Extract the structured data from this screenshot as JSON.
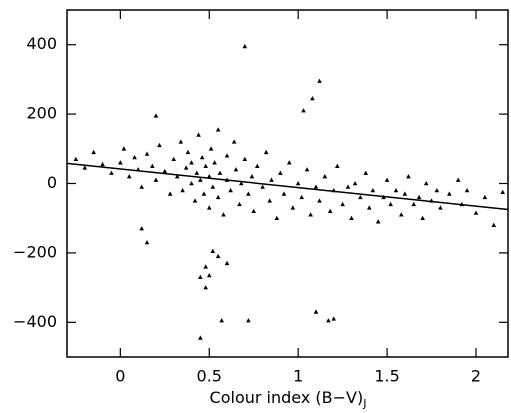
{
  "chart_data": {
    "type": "scatter",
    "x_label": "Colour index (B−V)",
    "x_label_subscript": "J",
    "xlim": [
      -0.3,
      2.18
    ],
    "ylim": [
      -500,
      500
    ],
    "xticks": [
      0,
      0.5,
      1,
      1.5,
      2
    ],
    "yticks": [
      {
        "value": -400,
        "label": "−400"
      },
      {
        "value": -200,
        "label": "−200"
      },
      0,
      200,
      400
    ],
    "series": [
      {
        "color": "#000000",
        "x": [
          -0.25,
          -0.2,
          -0.15,
          -0.1,
          -0.05,
          0.0,
          0.02,
          0.05,
          0.08,
          0.1,
          0.12,
          0.15,
          0.18,
          0.2,
          0.22,
          0.25,
          0.28,
          0.3,
          0.32,
          0.34,
          0.35,
          0.37,
          0.38,
          0.4,
          0.4,
          0.42,
          0.43,
          0.44,
          0.45,
          0.46,
          0.47,
          0.48,
          0.5,
          0.5,
          0.51,
          0.52,
          0.53,
          0.55,
          0.55,
          0.56,
          0.58,
          0.6,
          0.6,
          0.62,
          0.64,
          0.65,
          0.67,
          0.68,
          0.7,
          0.72,
          0.74,
          0.75,
          0.77,
          0.8,
          0.82,
          0.84,
          0.85,
          0.88,
          0.9,
          0.92,
          0.95,
          0.97,
          1.0,
          1.02,
          1.05,
          1.07,
          1.1,
          1.12,
          1.15,
          1.18,
          1.2,
          1.22,
          1.25,
          1.28,
          1.3,
          1.32,
          1.35,
          1.38,
          1.4,
          1.42,
          1.45,
          1.48,
          1.5,
          1.52,
          1.55,
          1.58,
          1.6,
          1.62,
          1.65,
          1.68,
          1.7,
          1.72,
          1.75,
          1.78,
          1.8,
          1.85,
          1.9,
          1.92,
          2.05,
          0.7,
          1.12,
          1.08,
          1.03,
          0.2,
          0.45,
          0.72,
          0.57,
          1.17,
          1.2,
          1.1,
          0.48,
          0.5,
          0.45,
          0.48,
          0.6,
          0.55,
          0.52,
          0.15,
          0.12,
          2.1,
          2.0,
          2.15,
          1.95
        ],
        "y": [
          70,
          45,
          90,
          55,
          30,
          60,
          100,
          20,
          75,
          40,
          -10,
          85,
          50,
          10,
          110,
          35,
          -30,
          70,
          20,
          120,
          -20,
          45,
          90,
          0,
          60,
          -50,
          30,
          140,
          10,
          75,
          -30,
          50,
          -70,
          20,
          100,
          -10,
          60,
          155,
          -40,
          30,
          -90,
          10,
          80,
          -20,
          120,
          40,
          -60,
          0,
          70,
          -30,
          20,
          -80,
          50,
          -10,
          90,
          -50,
          10,
          -100,
          30,
          -30,
          60,
          -70,
          0,
          -40,
          40,
          -90,
          -10,
          -50,
          20,
          -80,
          -20,
          50,
          -60,
          -10,
          -100,
          0,
          -40,
          30,
          -70,
          -20,
          -110,
          -40,
          10,
          -60,
          -20,
          -90,
          -30,
          20,
          -60,
          -40,
          -100,
          0,
          -50,
          -20,
          -70,
          -30,
          10,
          -60,
          -40,
          395,
          295,
          245,
          210,
          195,
          -445,
          -395,
          -395,
          -395,
          -390,
          -370,
          -300,
          -265,
          -270,
          -240,
          -230,
          -210,
          -195,
          -170,
          -130,
          -120,
          -85,
          -25,
          -20
        ]
      },
      {
        "type": "line",
        "color": "#000000",
        "x": [
          -0.3,
          2.18
        ],
        "y": [
          58,
          -75
        ]
      }
    ]
  }
}
